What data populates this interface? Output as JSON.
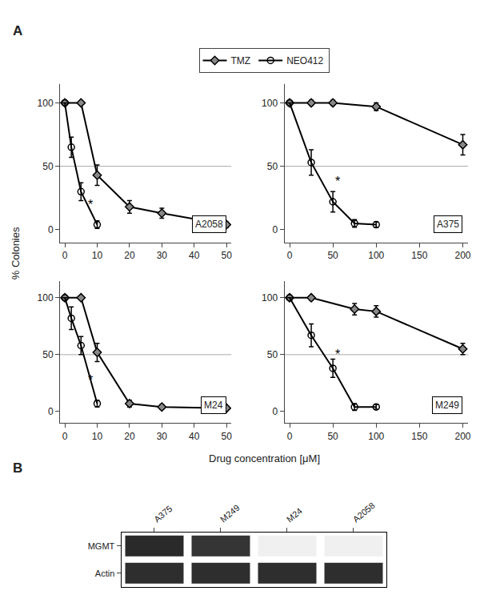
{
  "ylabel": "% Colonies",
  "xlabel": "Drug concentration [μM]",
  "legend": "top",
  "annotations": [
    {
      "text": "A"
    },
    {
      "text": "B"
    }
  ],
  "chart_data": [
    {
      "type": "line",
      "title": "A2058",
      "grid": false,
      "xlim": [
        -1.5,
        51.5
      ],
      "xticks": [
        0,
        10,
        20,
        30,
        40,
        50
      ],
      "ylim": [
        -10,
        115
      ],
      "yticks": [
        0,
        50,
        100
      ],
      "annotations": [
        {
          "text": "*",
          "x": 8,
          "y": 20
        },
        {
          "type": "hline",
          "y": 50,
          "color": "#aaaaaa"
        }
      ],
      "series": [
        {
          "name": "TMZ",
          "color": "#888888",
          "marker": "diamond",
          "x": [
            0,
            5,
            10,
            20,
            30,
            50
          ],
          "values": [
            100,
            100,
            43,
            18,
            13,
            4
          ],
          "errors": [
            0,
            0,
            8,
            5,
            4,
            2
          ]
        },
        {
          "name": "NEO412",
          "color": "#000000",
          "marker": "circle-open",
          "x": [
            0,
            2,
            5,
            10
          ],
          "values": [
            100,
            65,
            30,
            4
          ],
          "errors": [
            0,
            8,
            7,
            3
          ]
        }
      ]
    },
    {
      "type": "line",
      "title": "A375",
      "grid": false,
      "xlim": [
        -6,
        206
      ],
      "xticks": [
        0,
        50,
        100,
        150,
        200
      ],
      "ylim": [
        -10,
        115
      ],
      "yticks": [
        0,
        50,
        100
      ],
      "annotations": [
        {
          "text": "*",
          "x": 55,
          "y": 38
        },
        {
          "type": "hline",
          "y": 50,
          "color": "#aaaaaa"
        }
      ],
      "series": [
        {
          "name": "TMZ",
          "color": "#888888",
          "marker": "diamond",
          "x": [
            0,
            25,
            50,
            100,
            200
          ],
          "values": [
            100,
            100,
            100,
            97,
            67
          ],
          "errors": [
            0,
            2,
            2,
            3,
            8
          ]
        },
        {
          "name": "NEO412",
          "color": "#000000",
          "marker": "circle-open",
          "x": [
            0,
            25,
            50,
            75,
            100
          ],
          "values": [
            100,
            53,
            22,
            5,
            4
          ],
          "errors": [
            0,
            10,
            8,
            3,
            2
          ]
        }
      ]
    },
    {
      "type": "line",
      "title": "M24",
      "grid": false,
      "xlim": [
        -1.5,
        51.5
      ],
      "xticks": [
        0,
        10,
        20,
        30,
        40,
        50
      ],
      "ylim": [
        -10,
        115
      ],
      "yticks": [
        0,
        50,
        100
      ],
      "annotations": [
        {
          "text": "*",
          "x": 8,
          "y": 28
        },
        {
          "type": "hline",
          "y": 50,
          "color": "#aaaaaa"
        }
      ],
      "series": [
        {
          "name": "TMZ",
          "color": "#888888",
          "marker": "diamond",
          "x": [
            0,
            5,
            10,
            20,
            30,
            50
          ],
          "values": [
            100,
            100,
            52,
            7,
            4,
            3
          ],
          "errors": [
            0,
            0,
            8,
            3,
            2,
            1
          ]
        },
        {
          "name": "NEO412",
          "color": "#000000",
          "marker": "circle-open",
          "x": [
            0,
            2,
            5,
            10
          ],
          "values": [
            100,
            82,
            58,
            7
          ],
          "errors": [
            0,
            10,
            8,
            3
          ]
        }
      ]
    },
    {
      "type": "line",
      "title": "M249",
      "grid": false,
      "xlim": [
        -6,
        206
      ],
      "xticks": [
        0,
        50,
        100,
        150,
        200
      ],
      "ylim": [
        -10,
        115
      ],
      "yticks": [
        0,
        50,
        100
      ],
      "annotations": [
        {
          "text": "*",
          "x": 55,
          "y": 50
        },
        {
          "type": "hline",
          "y": 50,
          "color": "#aaaaaa"
        }
      ],
      "series": [
        {
          "name": "TMZ",
          "color": "#888888",
          "marker": "diamond",
          "x": [
            0,
            25,
            75,
            100,
            200
          ],
          "values": [
            100,
            100,
            90,
            88,
            55
          ],
          "errors": [
            0,
            2,
            5,
            5,
            5
          ]
        },
        {
          "name": "NEO412",
          "color": "#000000",
          "marker": "circle-open",
          "x": [
            0,
            25,
            50,
            75,
            100
          ],
          "values": [
            100,
            67,
            38,
            4,
            4
          ],
          "errors": [
            0,
            10,
            8,
            3,
            2
          ]
        }
      ]
    },
    {
      "type": "heatmap",
      "categories": [
        "A375",
        "M249",
        "M24",
        "A2058"
      ],
      "rows": [
        "MGMT",
        "Actin"
      ],
      "cells": [
        [
          0.9,
          0.85,
          0.0,
          0.0
        ],
        [
          0.88,
          0.88,
          0.88,
          0.88
        ]
      ],
      "zlim": [
        0,
        1
      ]
    }
  ]
}
